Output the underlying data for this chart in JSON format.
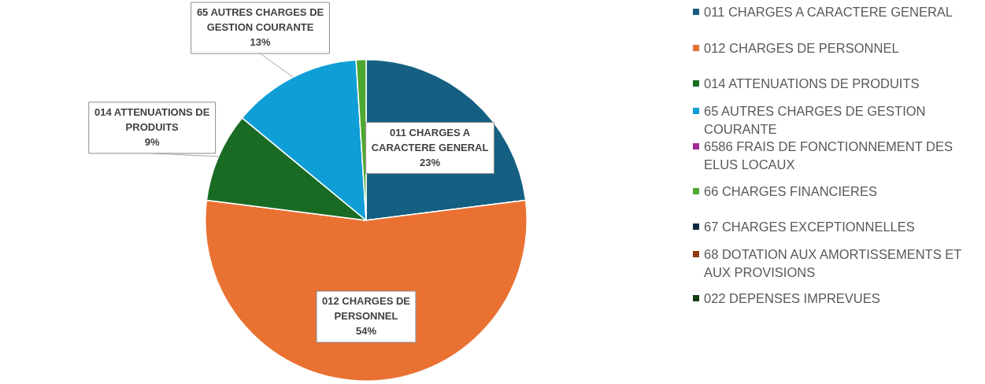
{
  "chart_data": {
    "type": "pie",
    "categories": [
      "011 CHARGES A CARACTERE GENERAL",
      "012 CHARGES DE PERSONNEL",
      "014 ATTENUATIONS DE PRODUITS",
      "65 AUTRES CHARGES DE GESTION COURANTE",
      "6586 FRAIS DE FONCTIONNEMENT DES ELUS LOCAUX",
      "66 CHARGES FINANCIERES",
      "67 CHARGES EXCEPTIONNELLES",
      "68 DOTATION AUX AMORTISSEMENTS ET AUX PROVISIONS",
      "022 DEPENSES IMPREVUES"
    ],
    "values": [
      23,
      54,
      9,
      13,
      0,
      1,
      0,
      0,
      0
    ],
    "colors": [
      "#156082",
      "#e97132",
      "#196b24",
      "#0f9ed5",
      "#a02b93",
      "#4ea72e",
      "#0e2841",
      "#8c3b12",
      "#0f4015"
    ],
    "value_labels": [
      "23%",
      "54%",
      "9%",
      "13%",
      null,
      null,
      null,
      null,
      null
    ],
    "legend": "right"
  }
}
